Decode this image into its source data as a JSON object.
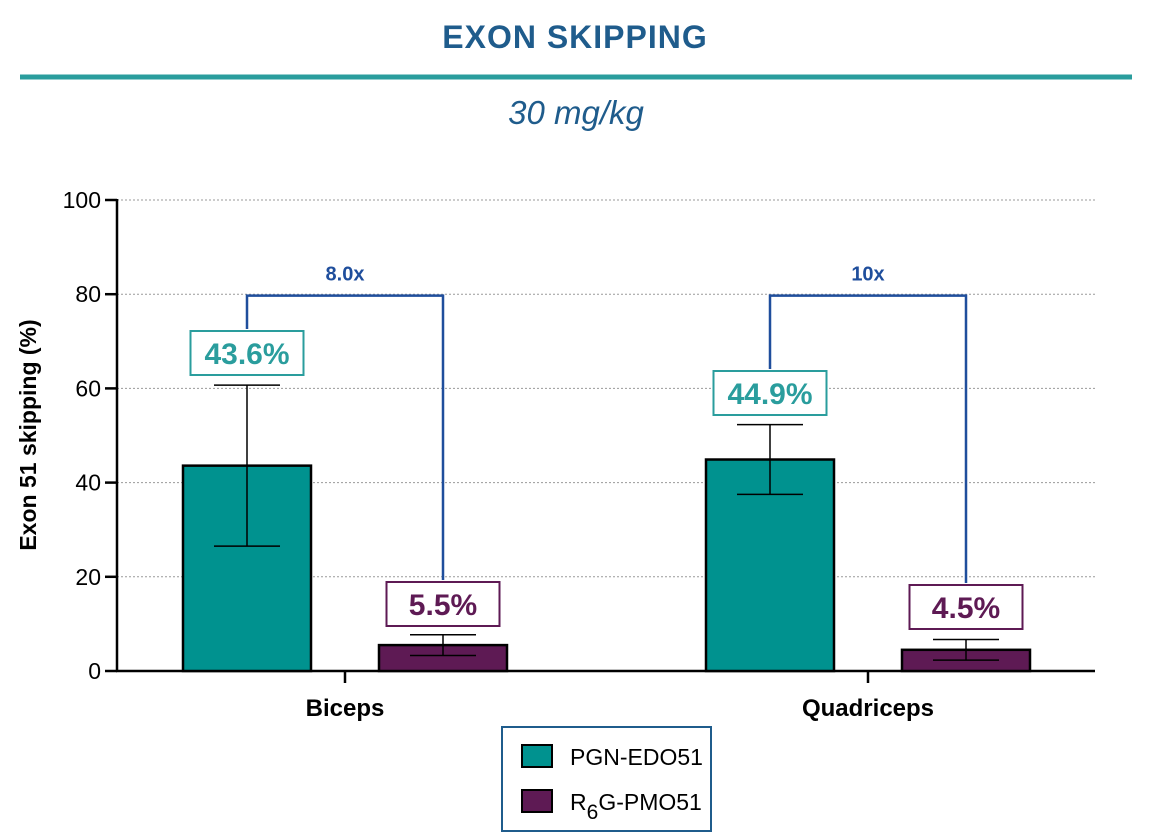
{
  "colors": {
    "title": "#1f5c8c",
    "rule": "#2a9d9d",
    "teal": "#00928f",
    "teal_label": "#2a9d9d",
    "purple": "#5e1a54",
    "bracket": "#1f4e9c",
    "grid": "#9a9a9a"
  },
  "chart_data": {
    "type": "bar",
    "title": "EXON SKIPPING",
    "subtitle": "30 mg/kg",
    "ylabel": "Exon 51 skipping (%)",
    "xlabel": "",
    "ylim": [
      0,
      100
    ],
    "yticks": [
      "0",
      "20",
      "40",
      "60",
      "80",
      "100"
    ],
    "ytick_values": [
      0,
      20,
      40,
      60,
      80,
      100
    ],
    "grid": true,
    "categories": [
      "Biceps",
      "Quadriceps"
    ],
    "series": [
      {
        "name": "PGN-EDO51",
        "color": "#00928f",
        "values": [
          43.6,
          44.9
        ],
        "error_low": [
          26.5,
          37.5
        ],
        "error_high": [
          60.7,
          52.3
        ],
        "labels": [
          "43.6%",
          "44.9%"
        ]
      },
      {
        "name": "R6G-PMO51",
        "color": "#5e1a54",
        "values": [
          5.5,
          4.5
        ],
        "error_low": [
          3.3,
          2.3
        ],
        "error_high": [
          7.7,
          6.7
        ],
        "labels": [
          "5.5%",
          "4.5%"
        ]
      }
    ],
    "comparisons": [
      {
        "category": "Biceps",
        "label": "8.0x",
        "level": 79.7
      },
      {
        "category": "Quadriceps",
        "label": "10x",
        "level": 79.7
      }
    ],
    "legend": {
      "position": "bottom-center",
      "entries": [
        {
          "main": "PGN-EDO51",
          "sub": "",
          "rest": ""
        },
        {
          "main": "R",
          "sub": "6",
          "rest": "G-PMO51"
        }
      ]
    }
  }
}
